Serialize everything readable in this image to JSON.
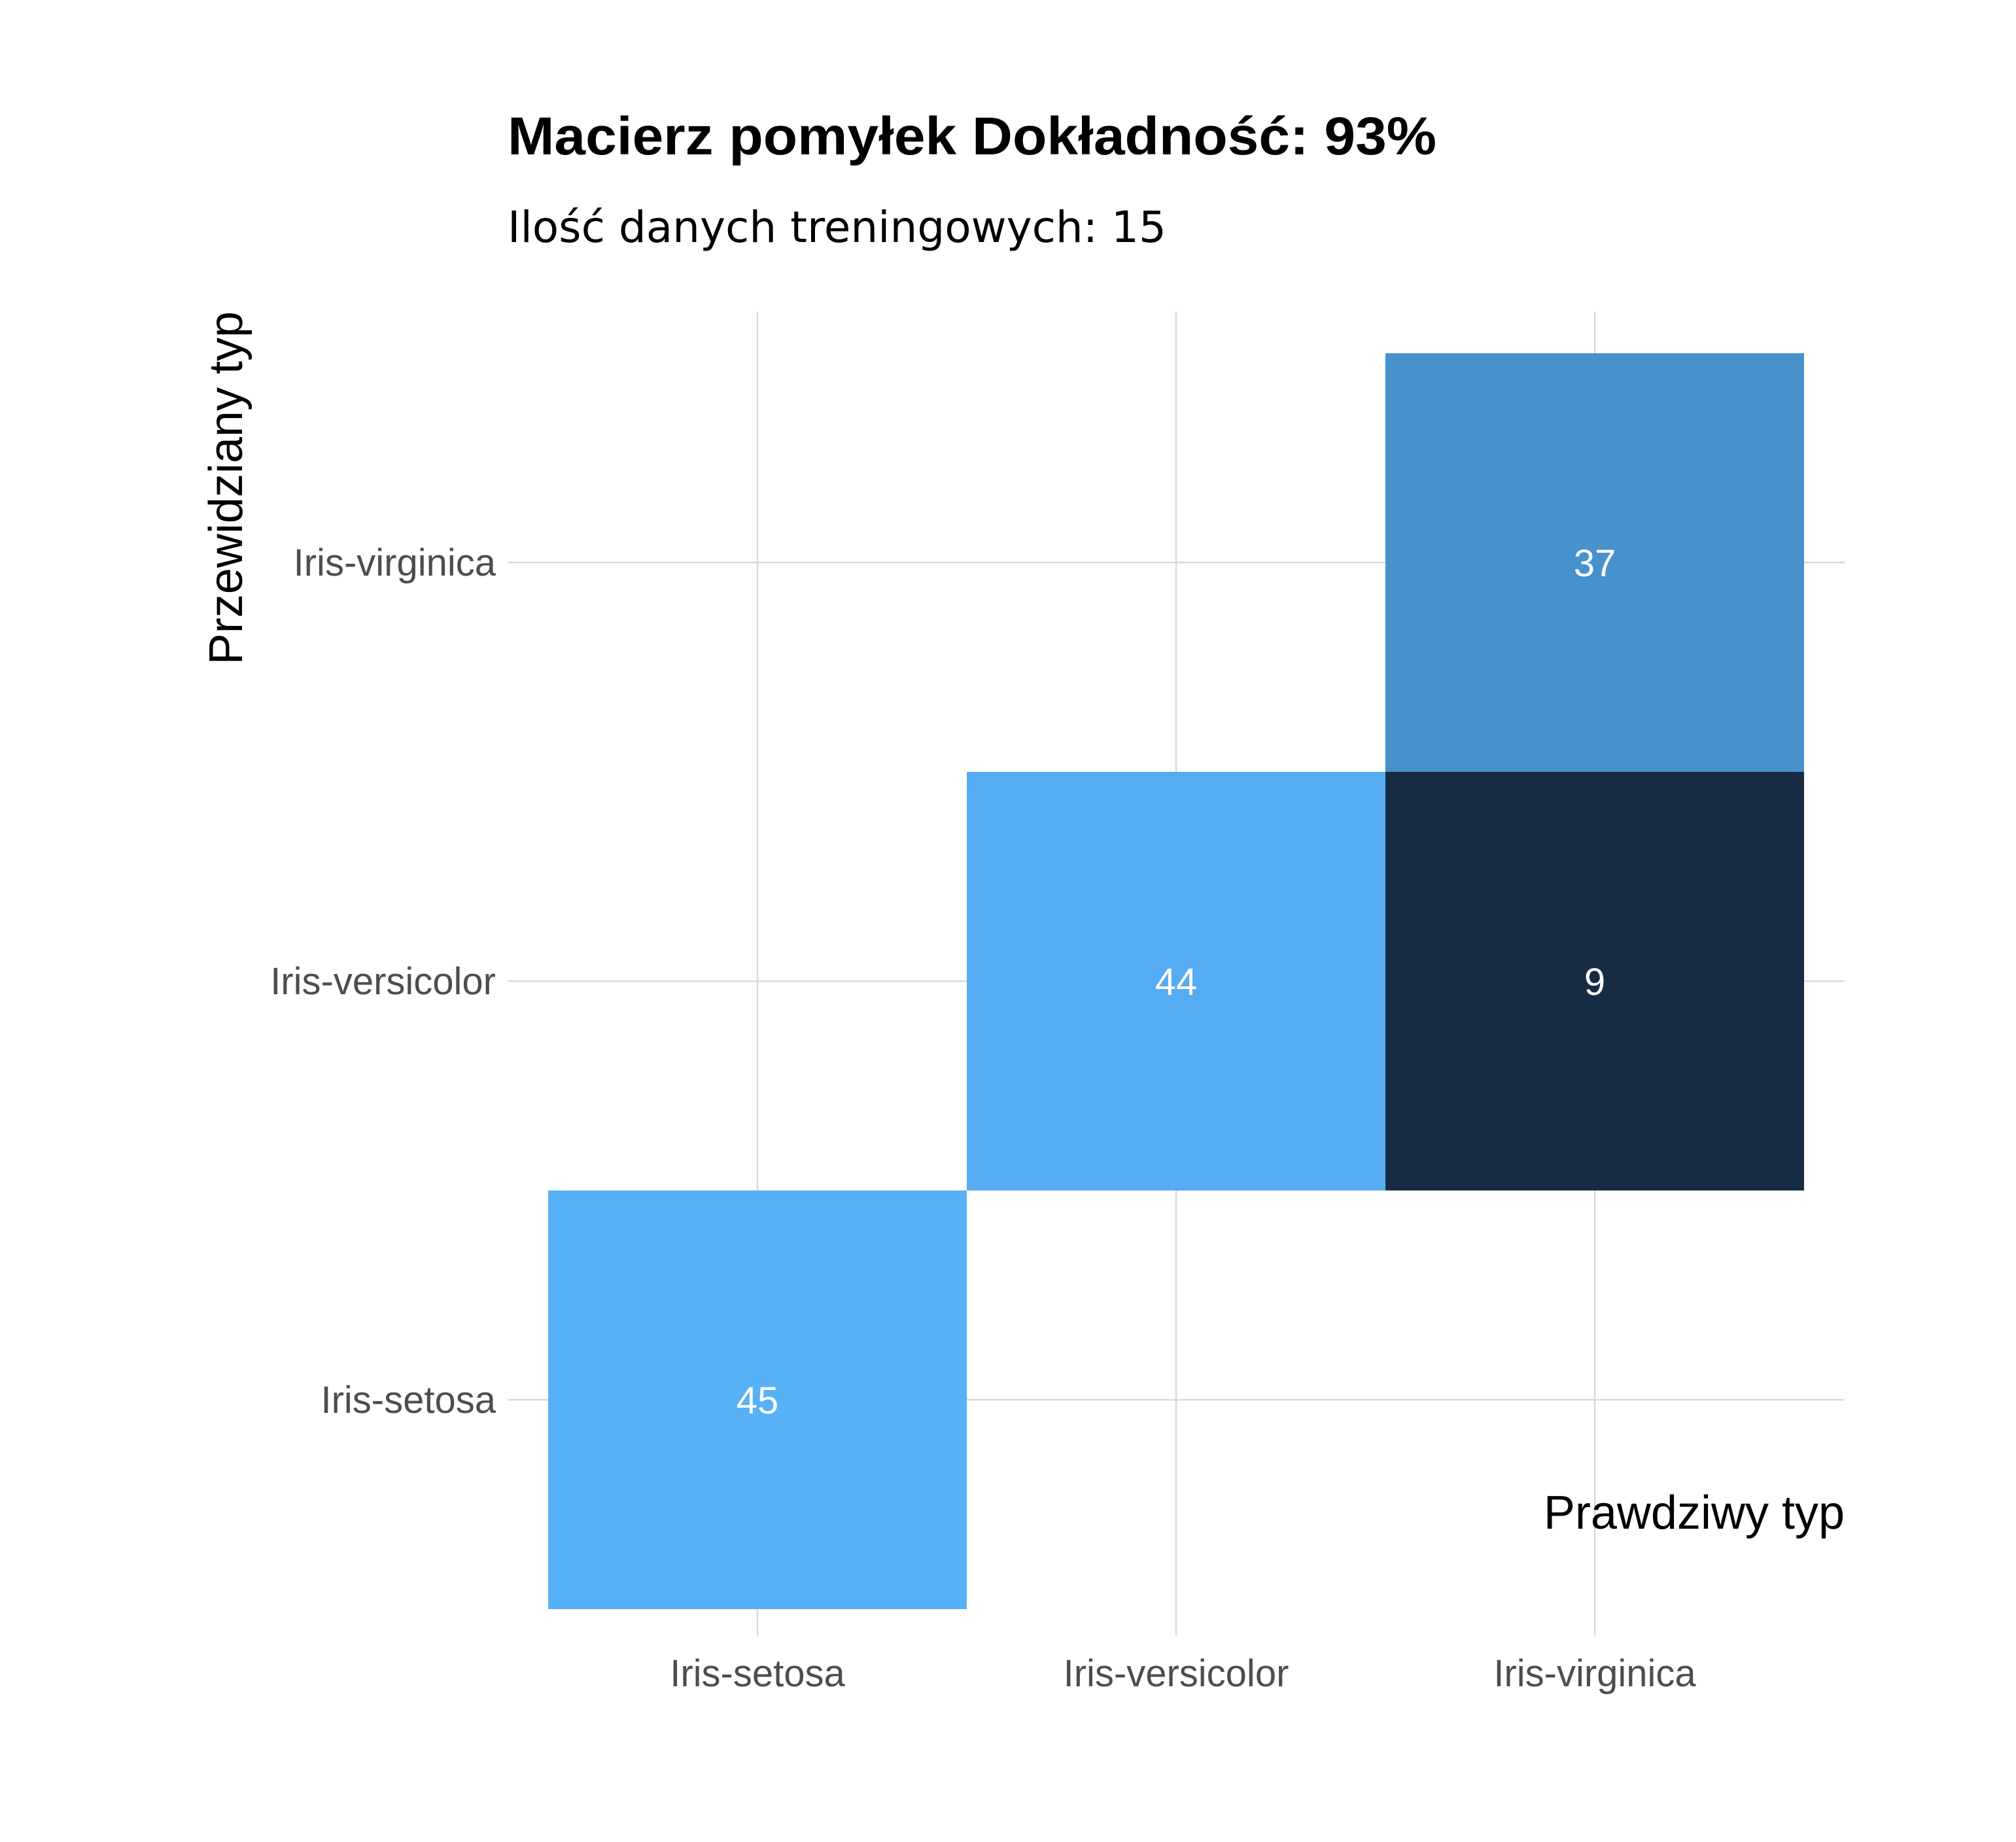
{
  "chart_data": {
    "type": "heatmap",
    "title": "Macierz pomyłek Dokładność: 93%",
    "subtitle": "Ilość danych treningowych: 15",
    "xlabel": "Prawdziwy typ",
    "ylabel": "Przewidziany typ",
    "x_categories": [
      "Iris-setosa",
      "Iris-versicolor",
      "Iris-virginica"
    ],
    "y_categories": [
      "Iris-setosa",
      "Iris-versicolor",
      "Iris-virginica"
    ],
    "cells": [
      {
        "x": "Iris-setosa",
        "y": "Iris-setosa",
        "value": 45,
        "label": "45",
        "color": "#56b1f7"
      },
      {
        "x": "Iris-versicolor",
        "y": "Iris-versicolor",
        "value": 44,
        "label": "44",
        "color": "#55acf2"
      },
      {
        "x": "Iris-virginica",
        "y": "Iris-virginica",
        "value": 37,
        "label": "37",
        "color": "#4791cc"
      },
      {
        "x": "Iris-virginica",
        "y": "Iris-versicolor",
        "value": 9,
        "label": "9",
        "color": "#162c43"
      }
    ],
    "grid": true,
    "legend": "none"
  }
}
